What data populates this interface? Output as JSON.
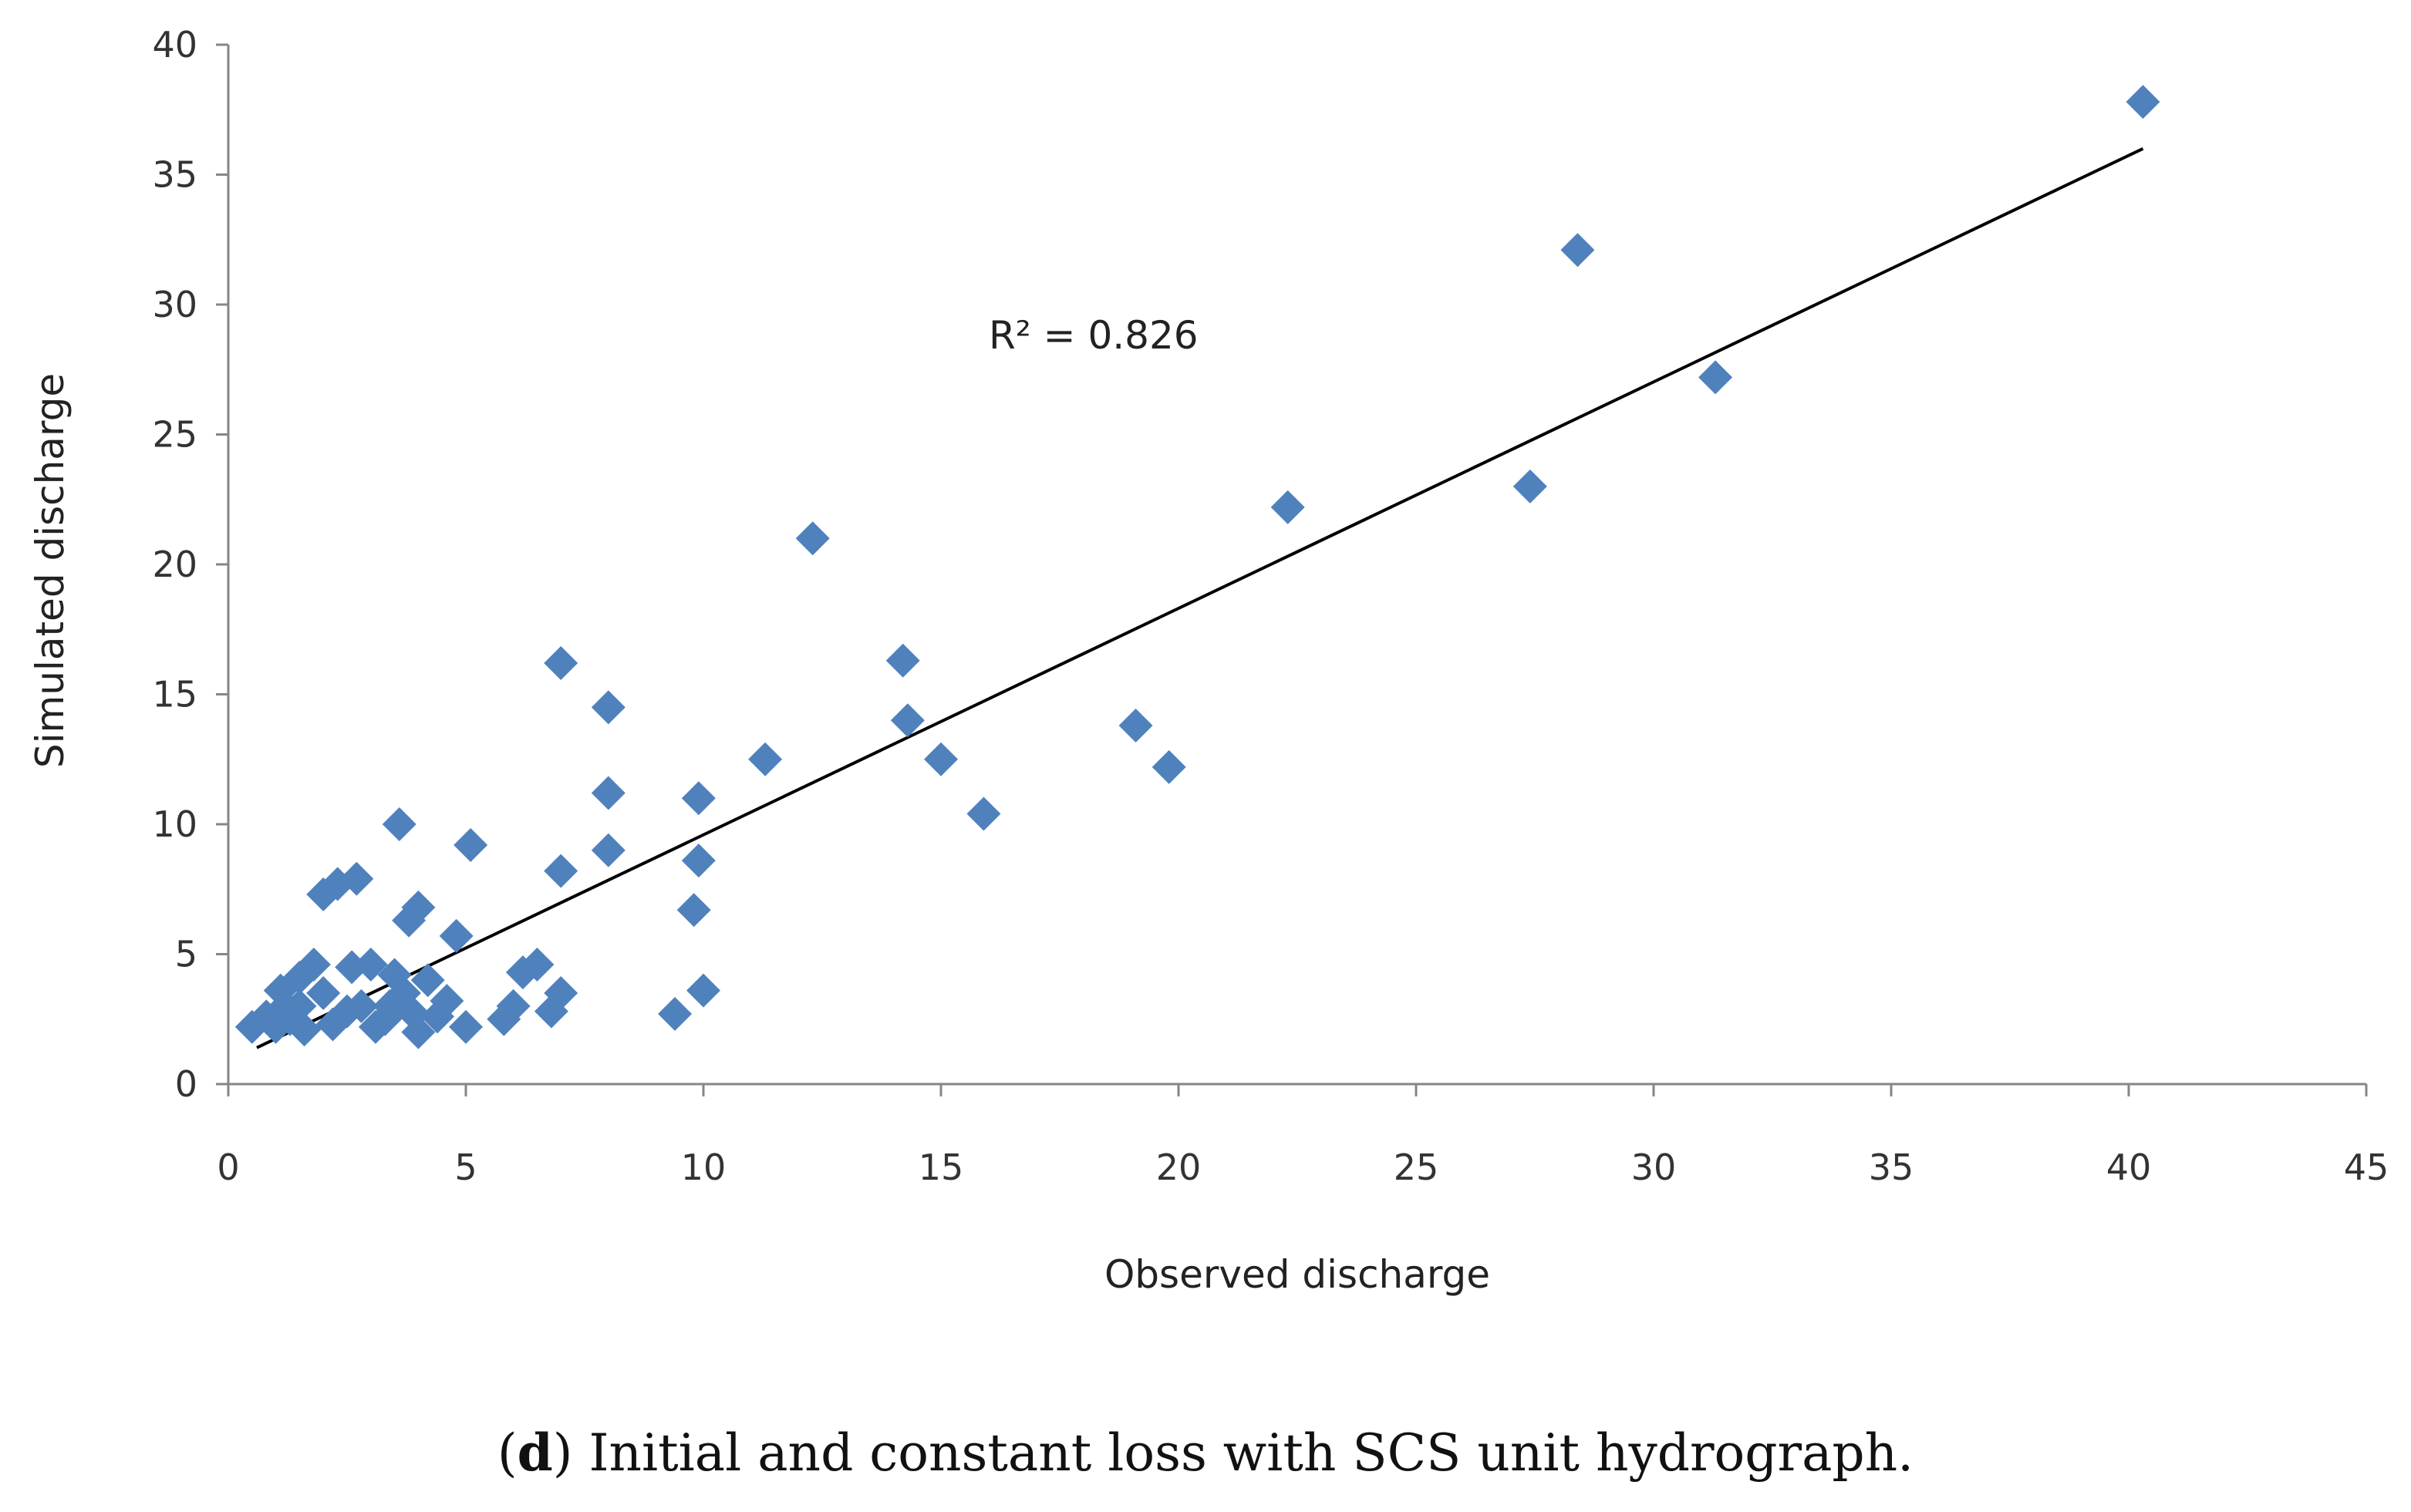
{
  "chart_data": {
    "type": "scatter",
    "xlabel": "Observed discharge",
    "ylabel": "Simulated discharge",
    "xlim": [
      0,
      45
    ],
    "ylim": [
      0,
      40
    ],
    "xticks": [
      0,
      5,
      10,
      15,
      20,
      25,
      30,
      35,
      40,
      45
    ],
    "yticks": [
      0,
      5,
      10,
      15,
      20,
      25,
      30,
      35,
      40
    ],
    "grid": false,
    "marker": "diamond",
    "marker_color": "#4F81BD",
    "trendline": {
      "type": "linear",
      "x": [
        0.6,
        40.3
      ],
      "y": [
        1.4,
        36.0
      ],
      "color": "#000000"
    },
    "annotation": "R² = 0.826",
    "points": [
      [
        40.3,
        37.8
      ],
      [
        28.4,
        32.1
      ],
      [
        31.3,
        27.2
      ],
      [
        27.4,
        23.0
      ],
      [
        22.3,
        22.2
      ],
      [
        12.3,
        21.0
      ],
      [
        14.2,
        16.3
      ],
      [
        14.3,
        14.0
      ],
      [
        15.0,
        12.5
      ],
      [
        15.9,
        10.4
      ],
      [
        19.1,
        13.8
      ],
      [
        19.8,
        12.2
      ],
      [
        11.3,
        12.5
      ],
      [
        9.9,
        11.0
      ],
      [
        9.9,
        8.6
      ],
      [
        9.8,
        6.7
      ],
      [
        10.0,
        3.6
      ],
      [
        9.4,
        2.7
      ],
      [
        7.0,
        16.2
      ],
      [
        8.0,
        14.5
      ],
      [
        8.0,
        11.2
      ],
      [
        8.0,
        9.0
      ],
      [
        7.0,
        8.2
      ],
      [
        7.0,
        3.5
      ],
      [
        6.8,
        2.8
      ],
      [
        6.5,
        4.6
      ],
      [
        6.2,
        4.3
      ],
      [
        6.0,
        3.0
      ],
      [
        5.8,
        2.5
      ],
      [
        5.1,
        9.2
      ],
      [
        5.0,
        2.2
      ],
      [
        4.8,
        5.7
      ],
      [
        4.6,
        3.2
      ],
      [
        4.0,
        6.8
      ],
      [
        3.8,
        6.3
      ],
      [
        3.6,
        10.0
      ],
      [
        4.0,
        2.0
      ],
      [
        3.9,
        2.7
      ],
      [
        3.7,
        3.5
      ],
      [
        3.5,
        4.2
      ],
      [
        3.3,
        2.5
      ],
      [
        3.1,
        2.2
      ],
      [
        3.0,
        4.6
      ],
      [
        2.8,
        3.0
      ],
      [
        2.7,
        7.9
      ],
      [
        2.6,
        4.5
      ],
      [
        2.3,
        7.7
      ],
      [
        2.0,
        7.3
      ],
      [
        2.2,
        2.3
      ],
      [
        2.0,
        3.5
      ],
      [
        1.8,
        4.6
      ],
      [
        1.6,
        2.1
      ],
      [
        1.5,
        4.1
      ],
      [
        1.3,
        2.5
      ],
      [
        1.1,
        3.6
      ],
      [
        1.0,
        2.2
      ],
      [
        0.8,
        2.6
      ],
      [
        0.5,
        2.2
      ],
      [
        1.5,
        3.0
      ],
      [
        2.5,
        2.8
      ],
      [
        4.2,
        4.0
      ],
      [
        4.4,
        2.6
      ],
      [
        3.4,
        3.0
      ],
      [
        1.2,
        3.0
      ]
    ]
  },
  "caption": {
    "label": "d",
    "text": " Initial and constant loss with SCS unit hydrograph."
  }
}
